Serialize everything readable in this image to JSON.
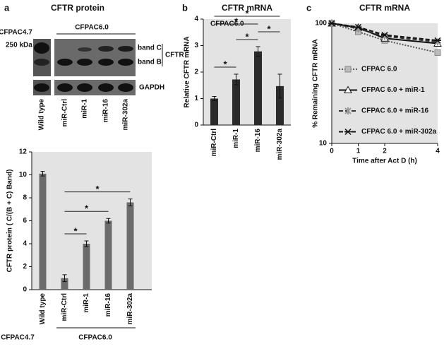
{
  "figure": {
    "panels": [
      "a",
      "b",
      "c"
    ],
    "blot": {
      "title": "CFTR protein",
      "groups": [
        "CFPAC4.7",
        "CFPAC6.0"
      ],
      "marker": "250 kDa",
      "bands": [
        "band C",
        "band B"
      ],
      "protein": "CFTR",
      "loading": "GAPDH"
    },
    "groups": [
      "CFPAC4.7",
      "CFPAC6.0"
    ]
  },
  "chart_data": [
    {
      "type": "bar",
      "ylabel": "CFTR protein ( C/(B + C) Band)",
      "categories": [
        "Wild type",
        "miR-Ctrl",
        "miR-1",
        "miR-16",
        "miR-302a"
      ],
      "values": [
        10.1,
        1.0,
        4.0,
        6.0,
        7.6
      ],
      "errors": [
        0.2,
        0.3,
        0.25,
        0.2,
        0.3
      ],
      "color": "#6b6b6b",
      "ylim": [
        0,
        12
      ],
      "yticks": [
        0,
        2,
        4,
        6,
        8,
        10,
        12
      ],
      "annotations": [
        {
          "text": "*",
          "between": [
            "miR-Ctrl",
            "miR-1"
          ]
        },
        {
          "text": "*",
          "between": [
            "miR-Ctrl",
            "miR-16"
          ]
        },
        {
          "text": "*",
          "between": [
            "miR-Ctrl",
            "miR-302a"
          ]
        }
      ]
    },
    {
      "type": "bar",
      "title": "CFTR mRNA",
      "ylabel": "Relative  CFTR  mRNA",
      "subtitle": "CFPAC6.0",
      "categories": [
        "miR-Ctrl",
        "miR-1",
        "miR-16",
        "miR-302a"
      ],
      "values": [
        1.0,
        1.72,
        2.78,
        1.47
      ],
      "errors": [
        0.08,
        0.2,
        0.18,
        0.45
      ],
      "color": "#2b2b2b",
      "ylim": [
        0,
        4
      ],
      "yticks": [
        0,
        1,
        2,
        3,
        4
      ],
      "annotations": [
        {
          "text": "*",
          "between": [
            "miR-Ctrl",
            "miR-1"
          ]
        },
        {
          "text": "*",
          "between": [
            "miR-1",
            "miR-16"
          ]
        },
        {
          "text": "*",
          "between": [
            "miR-16",
            "miR-302a"
          ]
        },
        {
          "text": "*",
          "between": [
            "miR-Ctrl",
            "miR-16"
          ]
        },
        {
          "text": "*",
          "between": [
            "miR-Ctrl",
            "miR-302a"
          ]
        }
      ]
    },
    {
      "type": "line",
      "title": "CFTR mRNA",
      "xlabel": "Time after Act D (h)",
      "ylabel": "% Remaining CFTR mRNA",
      "x": [
        0,
        1,
        2,
        4
      ],
      "xlim": [
        0,
        4
      ],
      "xticks": [
        0,
        1,
        2,
        4
      ],
      "ylim": [
        10,
        100
      ],
      "yticks": [
        10,
        100
      ],
      "log_y": true,
      "series": [
        {
          "name": "CFPAC 6.0",
          "color": "#555555",
          "dash": "dotted",
          "marker": "square",
          "values": [
            100,
            85,
            72,
            57
          ]
        },
        {
          "name": "CFPAC 6.0 + miR-1",
          "color": "#111111",
          "dash": "solid",
          "marker": "triangle",
          "values": [
            100,
            92,
            75,
            68
          ]
        },
        {
          "name": "CFPAC 6.0 + miR-16",
          "color": "#333333",
          "dash": "dashed",
          "marker": "x",
          "values": [
            100,
            90,
            78,
            70
          ]
        },
        {
          "name": "CFPAC 6.0 + miR-302a",
          "color": "#111111",
          "dash": "dashed",
          "marker": "star",
          "values": [
            100,
            93,
            80,
            72
          ]
        }
      ]
    }
  ]
}
